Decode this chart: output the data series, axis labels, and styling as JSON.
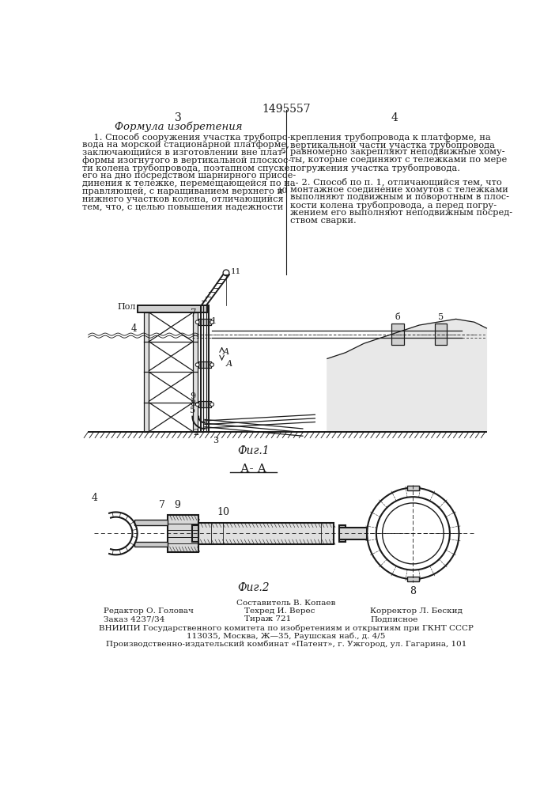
{
  "patent_number": "1495557",
  "page_left": "3",
  "page_right": "4",
  "title_left": "Формула изобретения",
  "c1_text": "    1. Способ сооружения участка трубопро-вода на морской стационарной платформе, заключающийся в изготовлении вне плат-формы изогнутого в вертикальной плоскос-ти колена трубопровода, поэтапном спуске его на дно посредством шарнирного присое-динения к тележке, перемещающейся по на-правляющей, с наращиванием верхнего и нижнего участков колена, отличающийся тем, что, с целью повышения надежности",
  "c1_lines": [
    "    1. Способ сооружения участка трубопро-",
    "вода на морской стационарной платформе,",
    "заключающийся в изготовлении вне плат-",
    "формы изогнутого в вертикальной плоскос-",
    "ти колена трубопровода, поэтапном спуске",
    "его на дно посредством шарнирного присое-",
    "динения к тележке, перемещающейся по на-",
    "правляющей, с наращиванием верхнего и",
    "нижнего участков колена, отличающийся",
    "тем, что, с целью повышения надежности"
  ],
  "c2_lines_p1": [
    "крепления трубопровода к платформе, на",
    "вертикальной части участка трубопровода",
    "равномерно закрепляют неподвижные хому-",
    "ты, которые соединяют с тележками по мере",
    "погружения участка трубопровода."
  ],
  "c2_lines_p2": [
    "    2. Способ по п. 1, отличающийся тем, что",
    "монтажное соединение хомутов с тележками",
    "выполняют подвижным и поворотным в плос-",
    "кости колена трубопровода, а перед погру-",
    "жением его выполняют неподвижным посред-",
    "ством сварки."
  ],
  "line_num_5": "5",
  "line_num_10": "10",
  "fig1_label": "Фиг.1",
  "fig2_label": "Фиг.2",
  "section_label": "А- А",
  "editor": "Редактор О. Головач",
  "order": "Заказ 4237/34",
  "composer": "Составитель В. Копаев",
  "tech": "Техред И. Верес",
  "edition": "Тираж 721",
  "corrector": "Корректор Л. Бескид",
  "subscription": "Подписное",
  "org_line1": "ВНИИПИ Государственного комитета по изобретениям и открытиям при ГКНТ СССР",
  "org_line2": "113035, Москва, Ж—35, Раушская наб., д. 4/5",
  "org_line3": "Производственно-издательский комбинат «Патент», г. Ужгород, ул. Гагарина, 101",
  "bg_color": "#ffffff",
  "text_color": "#1a1a1a",
  "line_color": "#1a1a1a"
}
